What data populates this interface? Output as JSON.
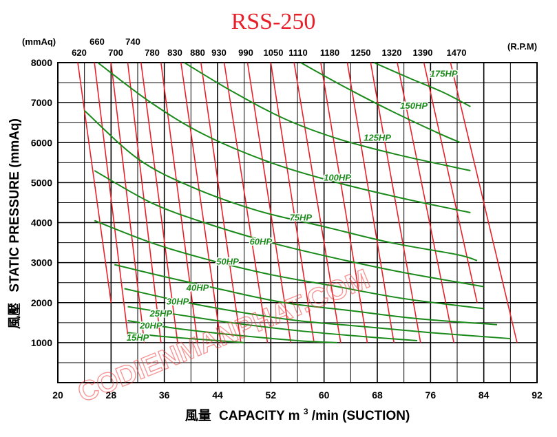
{
  "chart_data": {
    "type": "line",
    "title": "RSS-250",
    "xlabel": "風量 CAPACITY m3/min (SUCTION)",
    "xlabel_parts": {
      "cjk": "風量",
      "main": "CAPACITY  m",
      "sup": "3",
      "tail": "/min (SUCTION)"
    },
    "ylabel": "風壓 STATIC PRESSURE (mmAq)",
    "ylabel_parts": {
      "cjk": "風壓",
      "main": "STATIC  PRESSURE  (mmAq)"
    },
    "xlim": [
      20,
      92
    ],
    "ylim": [
      0,
      8000
    ],
    "x_ticks": [
      "20",
      "28",
      "36",
      "44",
      "52",
      "60",
      "68",
      "76",
      "84",
      "92"
    ],
    "y_ticks": [
      "1000",
      "2000",
      "3000",
      "4000",
      "5000",
      "6000",
      "7000",
      "8000"
    ],
    "y_tick_values": [
      1000,
      2000,
      3000,
      4000,
      5000,
      6000,
      7000,
      8000
    ],
    "grid": true,
    "top_unit_left": "(mmAq)",
    "top_unit_right": "(R.P.M)",
    "top_labels_row1": [
      "660",
      "740"
    ],
    "top_labels_row2": [
      "620",
      "700",
      "780",
      "830",
      "880",
      "930",
      "990",
      "1050",
      "1110",
      "1180",
      "1250",
      "1320",
      "1390",
      "1470"
    ],
    "rpm_series": [
      {
        "name": "620",
        "color": "#e8202a",
        "points": [
          [
            23.0,
            8000
          ],
          [
            28.0,
            2000
          ]
        ]
      },
      {
        "name": "660",
        "color": "#e8202a",
        "points": [
          [
            25.5,
            8000
          ],
          [
            30.5,
            1200
          ]
        ]
      },
      {
        "name": "700",
        "color": "#e8202a",
        "points": [
          [
            28.0,
            8000
          ],
          [
            33.0,
            1000
          ]
        ]
      },
      {
        "name": "740",
        "color": "#e8202a",
        "points": [
          [
            30.5,
            8000
          ],
          [
            35.5,
            1000
          ]
        ]
      },
      {
        "name": "780",
        "color": "#e8202a",
        "points": [
          [
            32.5,
            8000
          ],
          [
            38.0,
            1000
          ]
        ]
      },
      {
        "name": "830",
        "color": "#e8202a",
        "points": [
          [
            35.5,
            8000
          ],
          [
            41.0,
            1000
          ]
        ]
      },
      {
        "name": "880",
        "color": "#e8202a",
        "points": [
          [
            38.5,
            8000
          ],
          [
            44.5,
            1000
          ]
        ]
      },
      {
        "name": "930",
        "color": "#e8202a",
        "points": [
          [
            41.5,
            8000
          ],
          [
            47.5,
            1000
          ]
        ]
      },
      {
        "name": "990",
        "color": "#e8202a",
        "points": [
          [
            45.0,
            8000
          ],
          [
            51.5,
            1000
          ]
        ]
      },
      {
        "name": "1050",
        "color": "#e8202a",
        "points": [
          [
            48.5,
            8000
          ],
          [
            55.0,
            1000
          ]
        ]
      },
      {
        "name": "1110",
        "color": "#e8202a",
        "points": [
          [
            52.0,
            8000
          ],
          [
            58.5,
            1000
          ]
        ]
      },
      {
        "name": "1180",
        "color": "#e8202a",
        "points": [
          [
            55.5,
            8000
          ],
          [
            62.5,
            1000
          ]
        ]
      },
      {
        "name": "1250",
        "color": "#e8202a",
        "points": [
          [
            59.5,
            8000
          ],
          [
            66.5,
            1000
          ]
        ]
      },
      {
        "name": "1320",
        "color": "#e8202a",
        "points": [
          [
            63.5,
            8000
          ],
          [
            70.5,
            1000
          ]
        ]
      },
      {
        "name": "1390",
        "color": "#e8202a",
        "points": [
          [
            67.0,
            8000
          ],
          [
            74.5,
            1000
          ]
        ]
      },
      {
        "name": "1470",
        "color": "#e8202a",
        "points": [
          [
            71.0,
            8000
          ],
          [
            79.5,
            1000
          ]
        ]
      },
      {
        "name": "",
        "color": "#e8202a",
        "points": [
          [
            75.0,
            8000
          ],
          [
            83.0,
            2000
          ]
        ]
      },
      {
        "name": "",
        "color": "#e8202a",
        "points": [
          [
            79.0,
            8000
          ],
          [
            89.0,
            1000
          ]
        ]
      }
    ],
    "hp_series": [
      {
        "name": "175HP",
        "color": "#1a8a1a",
        "label_at": [
          78.0,
          7650
        ],
        "points": [
          [
            67.5,
            8000
          ],
          [
            73.0,
            7600
          ],
          [
            78.0,
            7250
          ],
          [
            82.0,
            6900
          ]
        ]
      },
      {
        "name": "150HP",
        "color": "#1a8a1a",
        "label_at": [
          73.5,
          6850
        ],
        "points": [
          [
            56.5,
            8000
          ],
          [
            63.0,
            7400
          ],
          [
            70.0,
            6800
          ],
          [
            77.0,
            6250
          ],
          [
            80.5,
            6000
          ]
        ]
      },
      {
        "name": "125HP",
        "color": "#1a8a1a",
        "label_at": [
          68.0,
          6050
        ],
        "points": [
          [
            39.0,
            8000
          ],
          [
            46.0,
            7300
          ],
          [
            54.0,
            6600
          ],
          [
            62.0,
            6100
          ],
          [
            71.0,
            5700
          ],
          [
            82.0,
            5300
          ]
        ]
      },
      {
        "name": "100HP",
        "color": "#1a8a1a",
        "label_at": [
          62.0,
          5050
        ],
        "points": [
          [
            26.0,
            8000
          ],
          [
            34.0,
            7000
          ],
          [
            42.0,
            6200
          ],
          [
            52.0,
            5500
          ],
          [
            62.0,
            5000
          ],
          [
            72.0,
            4600
          ],
          [
            82.0,
            4250
          ]
        ]
      },
      {
        "name": "75HP",
        "color": "#1a8a1a",
        "label_at": [
          56.5,
          4050
        ],
        "points": [
          [
            24.0,
            6800
          ],
          [
            32.0,
            5600
          ],
          [
            40.0,
            4900
          ],
          [
            50.0,
            4300
          ],
          [
            60.0,
            3900
          ],
          [
            70.0,
            3500
          ],
          [
            80.0,
            3200
          ],
          [
            83.0,
            3050
          ]
        ]
      },
      {
        "name": "60HP",
        "color": "#1a8a1a",
        "label_at": [
          50.5,
          3450
        ],
        "points": [
          [
            25.5,
            5300
          ],
          [
            34.0,
            4500
          ],
          [
            42.0,
            4000
          ],
          [
            52.0,
            3500
          ],
          [
            62.0,
            3100
          ],
          [
            72.0,
            2750
          ],
          [
            84.0,
            2400
          ]
        ]
      },
      {
        "name": "50HP",
        "color": "#1a8a1a",
        "label_at": [
          45.5,
          2950
        ],
        "points": [
          [
            25.5,
            4050
          ],
          [
            34.0,
            3500
          ],
          [
            42.0,
            3100
          ],
          [
            52.0,
            2700
          ],
          [
            62.0,
            2400
          ],
          [
            72.0,
            2100
          ],
          [
            84.0,
            1850
          ]
        ]
      },
      {
        "name": "40HP",
        "color": "#1a8a1a",
        "label_at": [
          41.0,
          2300
        ],
        "points": [
          [
            28.5,
            2950
          ],
          [
            36.0,
            2650
          ],
          [
            44.0,
            2350
          ],
          [
            54.0,
            2000
          ],
          [
            64.0,
            1800
          ],
          [
            74.0,
            1600
          ],
          [
            86.0,
            1450
          ]
        ]
      },
      {
        "name": "30HP",
        "color": "#1a8a1a",
        "label_at": [
          38.0,
          1950
        ],
        "points": [
          [
            30.0,
            2350
          ],
          [
            38.0,
            2050
          ],
          [
            46.0,
            1800
          ],
          [
            56.0,
            1550
          ],
          [
            66.0,
            1400
          ],
          [
            76.0,
            1250
          ],
          [
            88.0,
            1100
          ]
        ]
      },
      {
        "name": "25HP",
        "color": "#1a8a1a",
        "label_at": [
          35.5,
          1650
        ],
        "points": [
          [
            30.5,
            1900
          ],
          [
            38.0,
            1700
          ],
          [
            46.0,
            1500
          ],
          [
            56.0,
            1300
          ],
          [
            66.0,
            1150
          ],
          [
            74.0,
            1050
          ]
        ]
      },
      {
        "name": "20HP",
        "color": "#1a8a1a",
        "label_at": [
          34.0,
          1350
        ],
        "points": [
          [
            30.5,
            1550
          ],
          [
            38.0,
            1350
          ],
          [
            46.0,
            1200
          ],
          [
            56.0,
            1050
          ],
          [
            62.0,
            1000
          ]
        ]
      },
      {
        "name": "15HP",
        "color": "#1a8a1a",
        "label_at": [
          32.0,
          1050
        ],
        "points": [
          [
            30.5,
            1250
          ],
          [
            36.0,
            1150
          ],
          [
            44.0,
            1050
          ],
          [
            48.0,
            1000
          ]
        ]
      }
    ],
    "colors": {
      "rpm_lines": "#e8202a",
      "hp_lines": "#1a8a1a",
      "title": "#e8202a",
      "grid": "#000000"
    }
  },
  "watermark": "CODIENMANPHAT.COM"
}
